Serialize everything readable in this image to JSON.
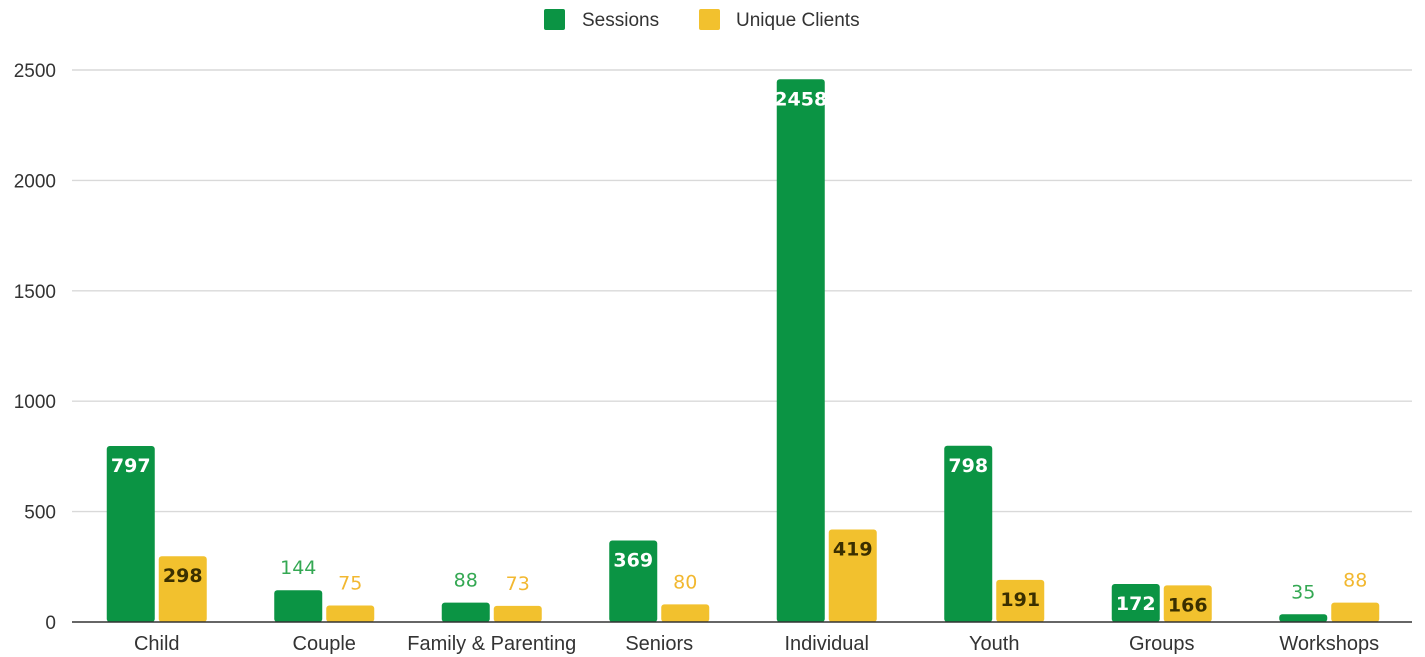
{
  "chart_data": {
    "type": "bar",
    "categories": [
      "Child",
      "Couple",
      "Family & Parenting",
      "Seniors",
      "Individual",
      "Youth",
      "Groups",
      "Workshops"
    ],
    "series": [
      {
        "name": "Sessions",
        "color": "#0b9444",
        "label_color": "#34a853",
        "values": [
          797,
          144,
          88,
          369,
          2458,
          798,
          172,
          35
        ]
      },
      {
        "name": "Unique Clients",
        "color": "#f2c12e",
        "label_color": "#f2b830",
        "values": [
          298,
          75,
          73,
          80,
          419,
          191,
          166,
          88
        ]
      }
    ],
    "yticks": [
      0,
      500,
      1000,
      1500,
      2000,
      2500
    ],
    "ylim": [
      0,
      2500
    ],
    "grid": true,
    "legend_position": "top-center",
    "title": "",
    "xlabel": "",
    "ylabel": ""
  }
}
